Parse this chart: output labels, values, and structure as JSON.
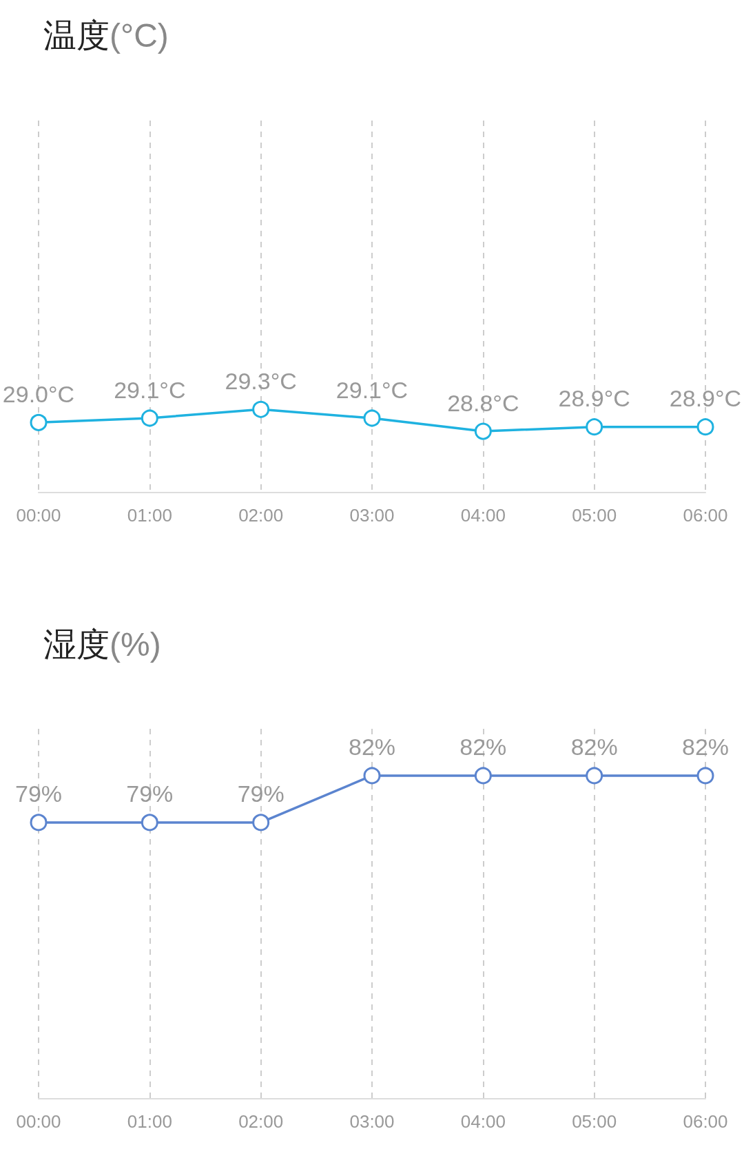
{
  "chart_data": [
    {
      "type": "line",
      "title": "温度(°C)",
      "categories": [
        "00:00",
        "01:00",
        "02:00",
        "03:00",
        "04:00",
        "05:00",
        "06:00"
      ],
      "series": [
        {
          "color": "#1fb2e0",
          "values": [
            29.0,
            29.1,
            29.3,
            29.1,
            28.8,
            28.9,
            28.9
          ],
          "value_labels": [
            "29.0°C",
            "29.1°C",
            "29.3°C",
            "29.1°C",
            "28.8°C",
            "28.9°C",
            "28.9°C"
          ]
        }
      ],
      "ylim": [
        27.4,
        35.9
      ],
      "grid": "x",
      "tick_labels": "x",
      "marker": "circle",
      "line_style": "solid"
    },
    {
      "type": "line",
      "title": "湿度(%)",
      "categories": [
        "00:00",
        "01:00",
        "02:00",
        "03:00",
        "04:00",
        "05:00",
        "06:00"
      ],
      "series": [
        {
          "color": "#5b84cf",
          "values": [
            79,
            79,
            79,
            82,
            82,
            82,
            82
          ],
          "value_labels": [
            "79%",
            "79%",
            "79%",
            "82%",
            "82%",
            "82%",
            "82%"
          ]
        }
      ],
      "ylim": [
        61.3,
        85
      ],
      "grid": "x",
      "tick_labels": "x",
      "marker": "circle",
      "line_style": "solid"
    }
  ]
}
